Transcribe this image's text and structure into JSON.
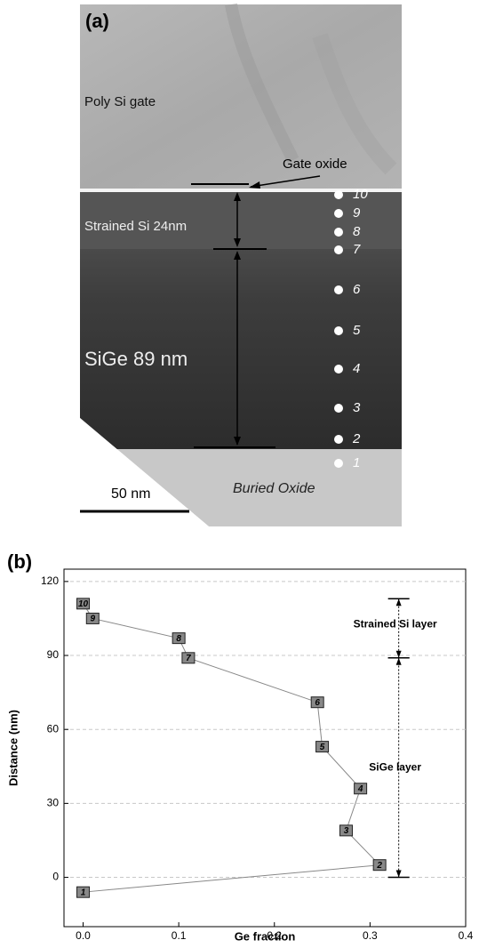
{
  "panel_a": {
    "panel_label": "(a)",
    "gate": "Poly Si gate",
    "gate_oxide": "Gate oxide",
    "strained_si": "Strained Si  24nm",
    "sige": "SiGe  89 nm",
    "scale_bar": "50 nm",
    "buried_oxide": "Buried Oxide",
    "points": [
      "1",
      "2",
      "3",
      "4",
      "5",
      "6",
      "7",
      "8",
      "9",
      "10"
    ]
  },
  "chart_data": {
    "type": "line",
    "panel_label": "(b)",
    "x_label": "Ge fraction",
    "y_label": "Distance (nm)",
    "x": [
      0.0,
      0.31,
      0.275,
      0.29,
      0.25,
      0.245,
      0.11,
      0.1,
      0.01,
      0.0
    ],
    "values": [
      -6,
      5,
      19,
      36,
      53,
      71,
      89,
      97,
      105,
      111
    ],
    "point_labels": [
      "1",
      "2",
      "3",
      "4",
      "5",
      "6",
      "7",
      "8",
      "9",
      "10"
    ],
    "color": "#888888",
    "xlim": [
      -0.02,
      0.4
    ],
    "ylim": [
      -20,
      125
    ],
    "xticks": [
      {
        "value": 0,
        "label": "0.0"
      },
      0.1,
      0.2,
      0.3,
      0.4
    ],
    "yticks": [
      0,
      30,
      60,
      90,
      120
    ],
    "grid": true,
    "annotations": [
      {
        "label": "Strained Si layer",
        "x": 0.33,
        "range": [
          89,
          113
        ]
      },
      {
        "label": "SiGe layer",
        "x": 0.33,
        "range": [
          0,
          89
        ]
      }
    ]
  }
}
